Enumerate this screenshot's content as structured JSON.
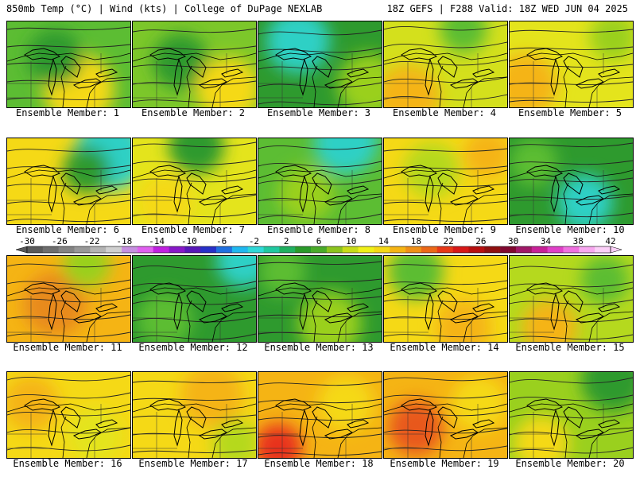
{
  "header": {
    "left": "850mb Temp (°C) | Wind (kts) | College of DuPage NEXLAB",
    "right": "18Z GEFS | F288 Valid: 18Z WED JUN 04 2025"
  },
  "label_prefix": "Ensemble Member: ",
  "members": [
    {
      "id": "1",
      "base": "#5cbd33",
      "blobs": [
        {
          "c": "#f5d916",
          "x": 90,
          "y": 85,
          "r": 45
        },
        {
          "c": "#2e9a2e",
          "x": 60,
          "y": 45,
          "r": 35
        }
      ]
    },
    {
      "id": "2",
      "base": "#7cc72a",
      "blobs": [
        {
          "c": "#2e9a2e",
          "x": 60,
          "y": 50,
          "r": 35
        },
        {
          "c": "#f5d916",
          "x": 120,
          "y": 85,
          "r": 40
        }
      ]
    },
    {
      "id": "3",
      "base": "#2e9a2e",
      "blobs": [
        {
          "c": "#2fd0c5",
          "x": 50,
          "y": 25,
          "r": 40
        },
        {
          "c": "#9ad01e",
          "x": 140,
          "y": 80,
          "r": 40
        }
      ]
    },
    {
      "id": "4",
      "base": "#d4e01c",
      "blobs": [
        {
          "c": "#f5b414",
          "x": 30,
          "y": 95,
          "r": 40
        },
        {
          "c": "#5cbd33",
          "x": 100,
          "y": 10,
          "r": 30
        }
      ]
    },
    {
      "id": "5",
      "base": "#e4e41c",
      "blobs": [
        {
          "c": "#f5b414",
          "x": 20,
          "y": 80,
          "r": 40
        },
        {
          "c": "#9ad01e",
          "x": 130,
          "y": 20,
          "r": 30
        }
      ]
    },
    {
      "id": "6",
      "base": "#f5d916",
      "blobs": [
        {
          "c": "#2fd0c5",
          "x": 130,
          "y": 20,
          "r": 45
        },
        {
          "c": "#2e9a2e",
          "x": 100,
          "y": 40,
          "r": 30
        }
      ]
    },
    {
      "id": "7",
      "base": "#e4e41c",
      "blobs": [
        {
          "c": "#2e9a2e",
          "x": 80,
          "y": 10,
          "r": 35
        },
        {
          "c": "#f5d916",
          "x": 40,
          "y": 80,
          "r": 35
        }
      ]
    },
    {
      "id": "8",
      "base": "#5cbd33",
      "blobs": [
        {
          "c": "#2fd0c5",
          "x": 110,
          "y": 5,
          "r": 40
        },
        {
          "c": "#9ad01e",
          "x": 60,
          "y": 70,
          "r": 35
        }
      ]
    },
    {
      "id": "9",
      "base": "#f5d916",
      "blobs": [
        {
          "c": "#b5d91e",
          "x": 60,
          "y": 40,
          "r": 35
        },
        {
          "c": "#f5b414",
          "x": 130,
          "y": 20,
          "r": 30
        }
      ]
    },
    {
      "id": "10",
      "base": "#2e9a2e",
      "blobs": [
        {
          "c": "#2fd0c5",
          "x": 95,
          "y": 80,
          "r": 35
        },
        {
          "c": "#5cbd33",
          "x": 30,
          "y": 30,
          "r": 30
        }
      ]
    },
    {
      "id": "11",
      "base": "#f5b414",
      "blobs": [
        {
          "c": "#e88a1a",
          "x": 60,
          "y": 60,
          "r": 40
        },
        {
          "c": "#9ad01e",
          "x": 100,
          "y": 10,
          "r": 30
        }
      ]
    },
    {
      "id": "12",
      "base": "#2e9a2e",
      "blobs": [
        {
          "c": "#2fd0c5",
          "x": 140,
          "y": 5,
          "r": 35
        },
        {
          "c": "#5cbd33",
          "x": 40,
          "y": 80,
          "r": 35
        }
      ]
    },
    {
      "id": "13",
      "base": "#2e9a2e",
      "blobs": [
        {
          "c": "#9ad01e",
          "x": 90,
          "y": 85,
          "r": 40
        },
        {
          "c": "#5cbd33",
          "x": 30,
          "y": 20,
          "r": 30
        }
      ]
    },
    {
      "id": "14",
      "base": "#f5d916",
      "blobs": [
        {
          "c": "#5cbd33",
          "x": 40,
          "y": 20,
          "r": 35
        },
        {
          "c": "#f5b414",
          "x": 100,
          "y": 90,
          "r": 35
        }
      ]
    },
    {
      "id": "15",
      "base": "#b5d91e",
      "blobs": [
        {
          "c": "#f5b414",
          "x": 50,
          "y": 90,
          "r": 35
        },
        {
          "c": "#5cbd33",
          "x": 120,
          "y": 30,
          "r": 30
        }
      ]
    },
    {
      "id": "16",
      "base": "#f5d916",
      "blobs": [
        {
          "c": "#f5b414",
          "x": 30,
          "y": 40,
          "r": 35
        },
        {
          "c": "#e4e41c",
          "x": 110,
          "y": 80,
          "r": 35
        }
      ]
    },
    {
      "id": "17",
      "base": "#f5d916",
      "blobs": [
        {
          "c": "#f5b414",
          "x": 100,
          "y": 30,
          "r": 40
        },
        {
          "c": "#b5d91e",
          "x": 130,
          "y": 90,
          "r": 30
        }
      ]
    },
    {
      "id": "18",
      "base": "#f5b414",
      "blobs": [
        {
          "c": "#e8301a",
          "x": 25,
          "y": 95,
          "r": 30
        },
        {
          "c": "#f5d916",
          "x": 110,
          "y": 40,
          "r": 35
        }
      ]
    },
    {
      "id": "19",
      "base": "#f5b414",
      "blobs": [
        {
          "c": "#e8581a",
          "x": 40,
          "y": 70,
          "r": 35
        },
        {
          "c": "#f5d916",
          "x": 120,
          "y": 40,
          "r": 35
        }
      ]
    },
    {
      "id": "20",
      "base": "#9ad01e",
      "blobs": [
        {
          "c": "#2e9a2e",
          "x": 130,
          "y": 10,
          "r": 40
        },
        {
          "c": "#f5d916",
          "x": 40,
          "y": 90,
          "r": 35
        }
      ]
    }
  ],
  "colorbar": {
    "ticks": [
      "-30",
      "-26",
      "-22",
      "-18",
      "-14",
      "-10",
      "-6",
      "-2",
      "2",
      "6",
      "10",
      "14",
      "18",
      "22",
      "26",
      "30",
      "34",
      "38",
      "42"
    ],
    "colors": [
      "#5a5a5a",
      "#6e6e6e",
      "#838383",
      "#989898",
      "#b4b4b4",
      "#d0d0d0",
      "#c690e0",
      "#e060f0",
      "#c020e0",
      "#8818c8",
      "#5818b8",
      "#2830c8",
      "#2070e0",
      "#20b8f0",
      "#30d8d8",
      "#20c8a0",
      "#20b060",
      "#2a9a2a",
      "#4aab2a",
      "#8cc41e",
      "#c8dc18",
      "#f0f018",
      "#f5d916",
      "#f5b414",
      "#f09018",
      "#ec6818",
      "#e83818",
      "#d81818",
      "#b81010",
      "#901010",
      "#800830",
      "#a01868",
      "#c82098",
      "#e040c8",
      "#f070e0",
      "#f8a8f0",
      "#fcd0f8"
    ]
  }
}
